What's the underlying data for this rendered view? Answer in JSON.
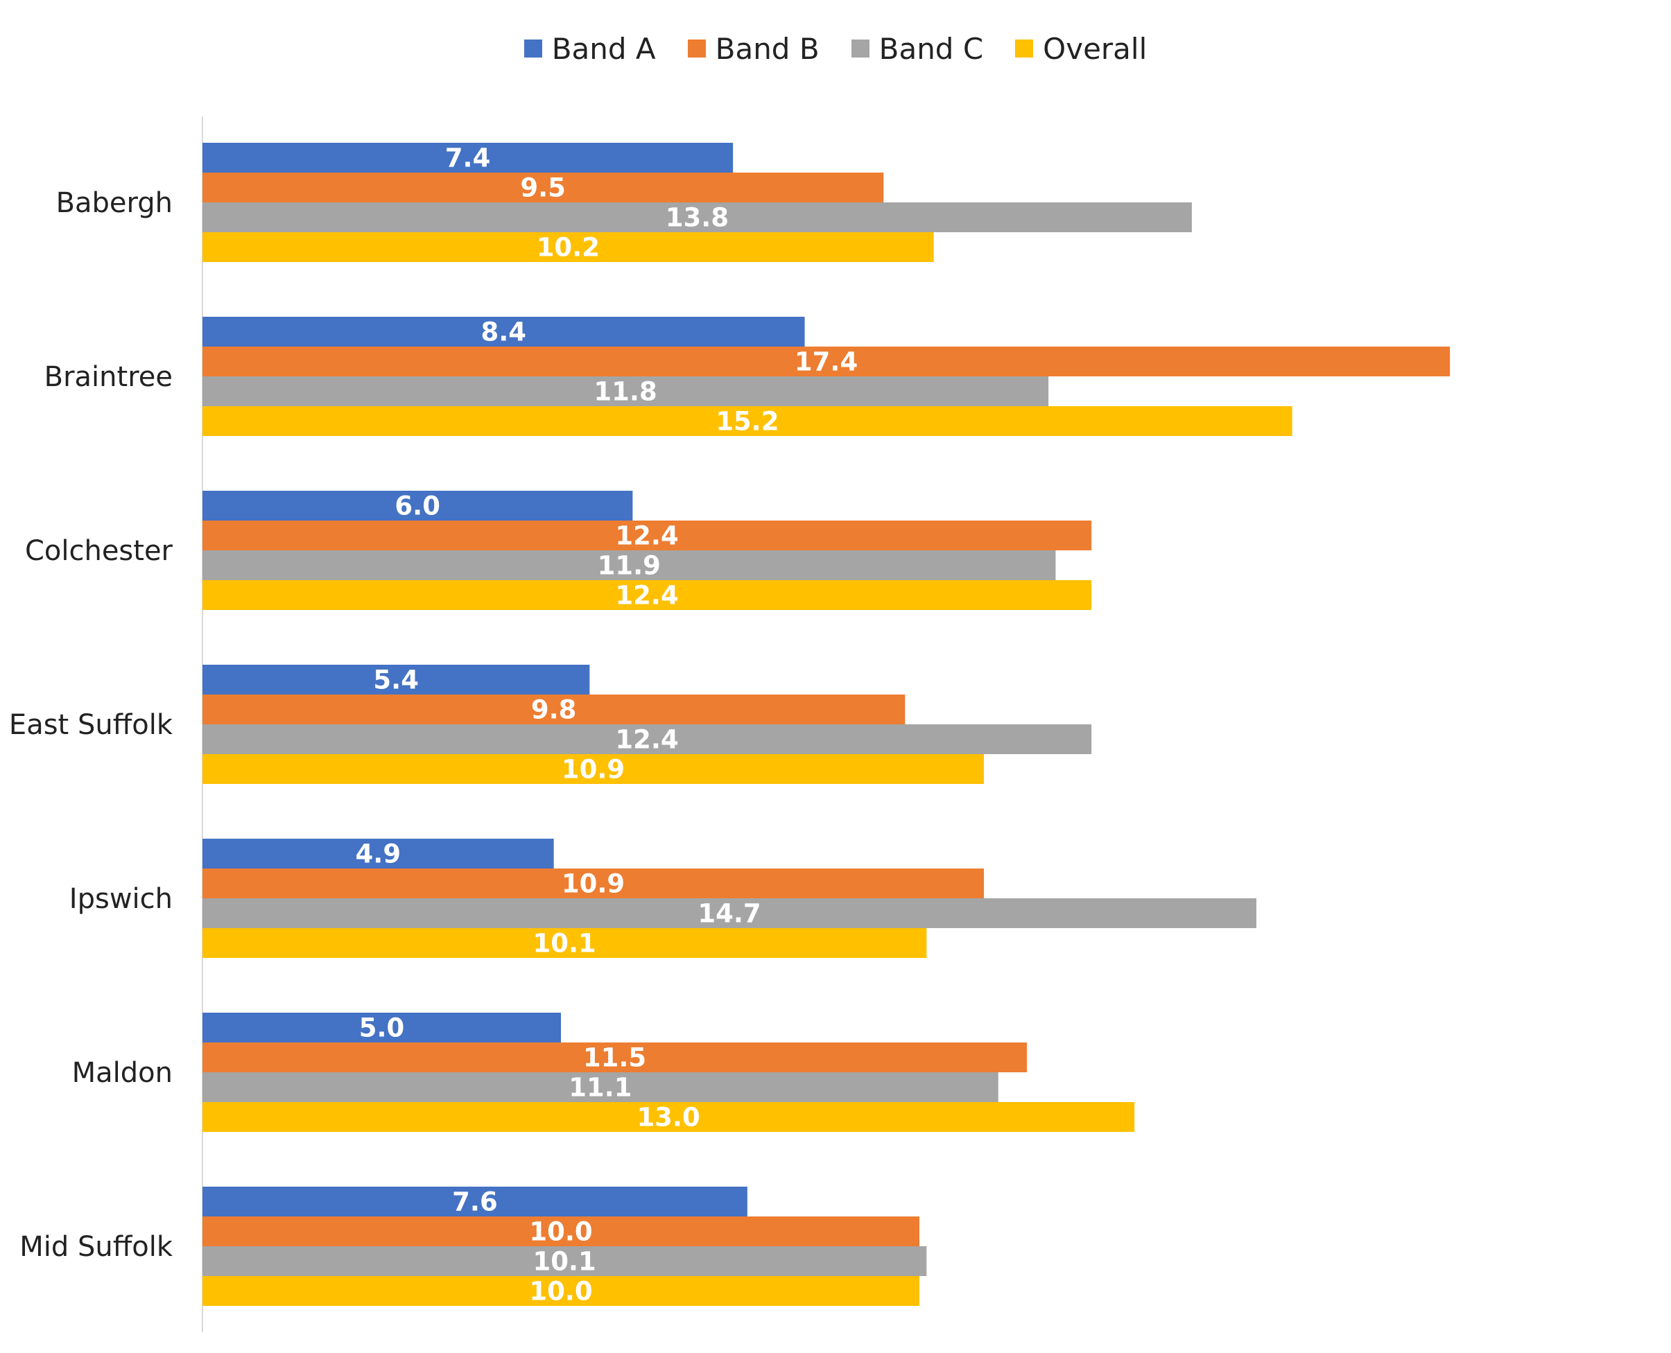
{
  "chart_data": {
    "type": "bar",
    "orientation": "horizontal",
    "categories": [
      "Babergh",
      "Braintree",
      "Colchester",
      "East Suffolk",
      "Ipswich",
      "Maldon",
      "Mid Suffolk"
    ],
    "series": [
      {
        "name": "Band A",
        "color": "#4472C4",
        "values": [
          7.4,
          8.4,
          6.0,
          5.4,
          4.9,
          5.0,
          7.6
        ]
      },
      {
        "name": "Band B",
        "color": "#ED7D31",
        "values": [
          9.5,
          17.4,
          12.4,
          9.8,
          10.9,
          11.5,
          10.0
        ]
      },
      {
        "name": "Band C",
        "color": "#A5A5A5",
        "values": [
          13.8,
          11.8,
          11.9,
          12.4,
          14.7,
          11.1,
          10.1
        ]
      },
      {
        "name": "Overall",
        "color": "#FFC000",
        "values": [
          10.2,
          15.2,
          12.4,
          10.9,
          10.1,
          13.0,
          10.0
        ]
      }
    ],
    "data_labels": [
      [
        "7.4",
        "8.4",
        "6.0",
        "5.4",
        "4.9",
        "5.0",
        "7.6"
      ],
      [
        "9.5",
        "17.4",
        "12.4",
        "9.8",
        "10.9",
        "11.5",
        "10.0"
      ],
      [
        "13.8",
        "11.8",
        "11.9",
        "12.4",
        "14.7",
        "11.1",
        "10.1"
      ],
      [
        "10.2",
        "15.2",
        "12.4",
        "10.9",
        "10.1",
        "13.0",
        "10.0"
      ]
    ],
    "xlim": [
      0,
      20
    ],
    "grid": false,
    "legend_position": "top"
  }
}
